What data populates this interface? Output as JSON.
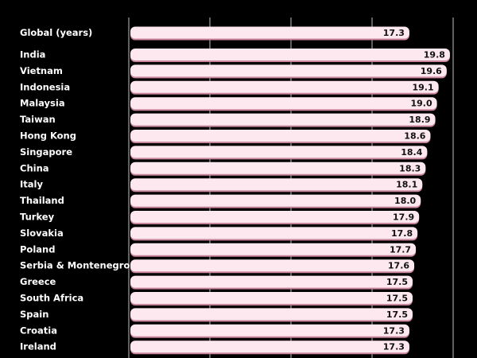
{
  "chart_data": {
    "type": "bar",
    "orientation": "horizontal",
    "title": "",
    "xlabel": "",
    "ylabel": "",
    "categories": [
      "Global (years)",
      "India",
      "Vietnam",
      "Indonesia",
      "Malaysia",
      "Taiwan",
      "Hong Kong",
      "Singapore",
      "China",
      "Italy",
      "Thailand",
      "Turkey",
      "Slovakia",
      "Poland",
      "Serbia & Montenegro",
      "Greece",
      "South Africa",
      "Spain",
      "Croatia",
      "Ireland"
    ],
    "values": [
      17.3,
      19.8,
      19.6,
      19.1,
      19.0,
      18.9,
      18.6,
      18.4,
      18.3,
      18.1,
      18.0,
      17.9,
      17.8,
      17.7,
      17.6,
      17.5,
      17.5,
      17.5,
      17.3,
      17.3
    ],
    "value_labels": [
      "17.3",
      "19.8",
      "19.6",
      "19.1",
      "19.0",
      "18.9",
      "18.6",
      "18.4",
      "18.3",
      "18.1",
      "18.0",
      "17.9",
      "17.8",
      "17.7",
      "17.6",
      "17.5",
      "17.5",
      "17.5",
      "17.3",
      "17.3"
    ],
    "xlim": [
      0,
      20
    ],
    "gridlines_x": [
      5,
      10,
      15,
      20
    ],
    "grid": true,
    "legend": "none",
    "colors": {
      "background": "#000000",
      "bar_fill": "#fde8f0",
      "bar_shadow": "#c9849e",
      "gridline": "#bfbfbf",
      "category_text": "#ffffff",
      "value_text": "#111111"
    }
  }
}
